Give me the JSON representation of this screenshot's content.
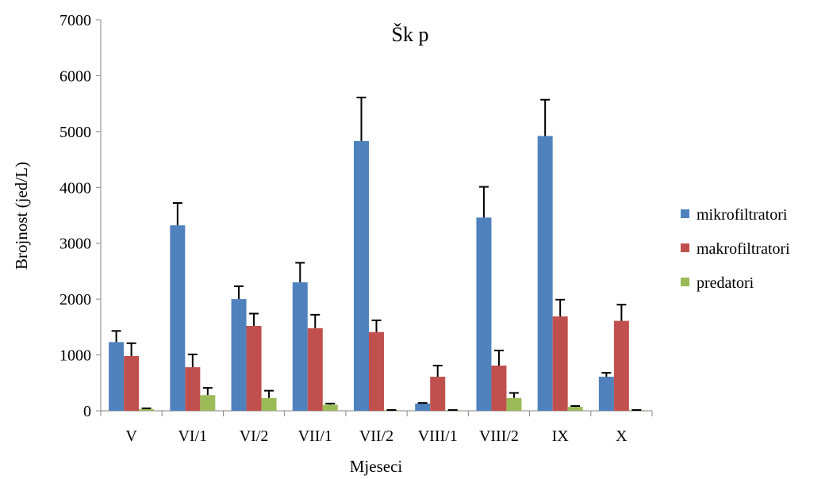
{
  "chart_data": {
    "type": "bar",
    "title": "Šk p",
    "xlabel": "Mjeseci",
    "ylabel": "Brojnost  (jed/L)",
    "ylim": [
      0,
      7000
    ],
    "yticks": [
      "0",
      "1000",
      "2000",
      "3000",
      "4000",
      "5000",
      "6000",
      "7000"
    ],
    "categories": [
      "V",
      "VI/1",
      "VI/2",
      "VII/1",
      "VII/2",
      "VIII/1",
      "VIII/2",
      "IX",
      "X"
    ],
    "error_bars": "positive",
    "grid": false,
    "legend_position": "right",
    "series": [
      {
        "name": "mikrofiltratori",
        "color": "#4F81BD",
        "values": [
          1230,
          3320,
          2000,
          2300,
          4830,
          130,
          3460,
          4920,
          610
        ],
        "errors": [
          200,
          400,
          230,
          350,
          780,
          10,
          550,
          650,
          70
        ]
      },
      {
        "name": "makrofiltratori",
        "color": "#C0504D",
        "values": [
          980,
          780,
          1520,
          1480,
          1410,
          610,
          810,
          1690,
          1610
        ],
        "errors": [
          230,
          230,
          220,
          240,
          210,
          200,
          270,
          300,
          290
        ]
      },
      {
        "name": "predatori",
        "color": "#9BBB59",
        "values": [
          30,
          280,
          230,
          110,
          10,
          10,
          230,
          70,
          10
        ],
        "errors": [
          15,
          130,
          130,
          20,
          5,
          5,
          90,
          15,
          5
        ]
      }
    ]
  }
}
